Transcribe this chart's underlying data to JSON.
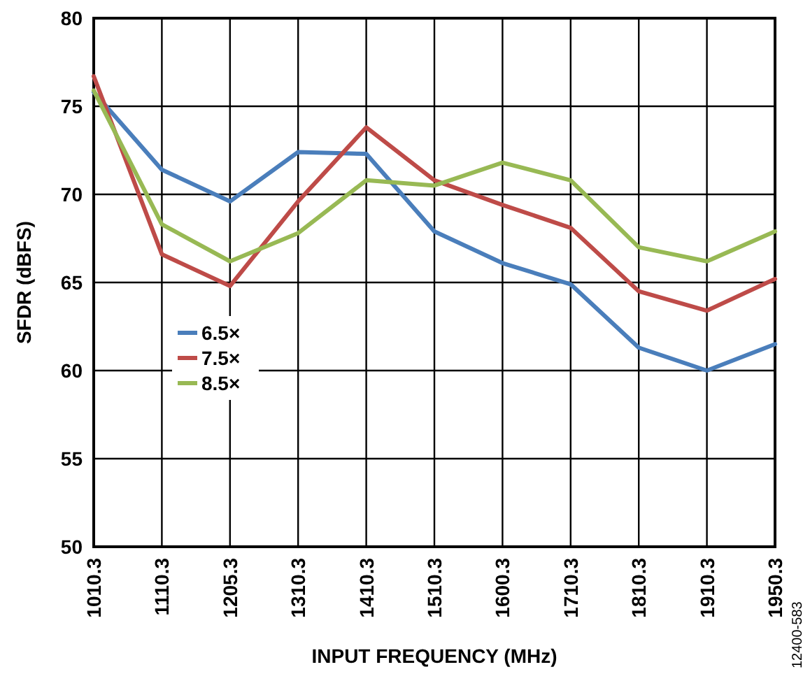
{
  "chart_data": {
    "type": "line",
    "xlabel": "INPUT FREQUENCY (MHz)",
    "ylabel": "SFDR (dBFS)",
    "categories": [
      "1010.3",
      "1110.3",
      "1205.3",
      "1310.3",
      "1410.3",
      "1510.3",
      "1600.3",
      "1710.3",
      "1810.3",
      "1910.3",
      "1950.3"
    ],
    "series": [
      {
        "name": "6.5×",
        "color": "#4a7ebb",
        "values": [
          75.8,
          71.4,
          69.6,
          72.4,
          72.3,
          67.9,
          66.1,
          64.9,
          61.3,
          60.0,
          61.5
        ]
      },
      {
        "name": "7.5×",
        "color": "#be4b48",
        "values": [
          76.7,
          66.6,
          64.8,
          69.6,
          73.8,
          70.8,
          69.4,
          68.1,
          64.5,
          63.4,
          65.2
        ]
      },
      {
        "name": "8.5×",
        "color": "#98b954",
        "values": [
          75.9,
          68.3,
          66.2,
          67.8,
          70.8,
          70.5,
          71.8,
          70.8,
          67.0,
          66.2,
          67.9
        ]
      }
    ],
    "ylim": [
      50,
      80
    ],
    "yticks": [
      50,
      55,
      60,
      65,
      70,
      75,
      80
    ],
    "grid": true,
    "legend": "left",
    "annotations": [
      "12400-583"
    ]
  }
}
